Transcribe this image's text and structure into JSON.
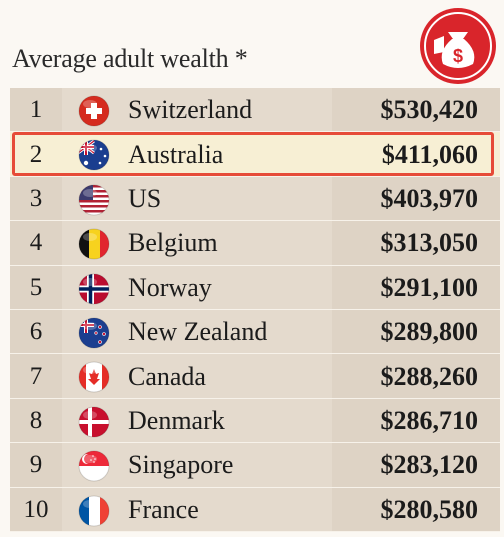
{
  "title": "Average adult wealth *",
  "rows": [
    {
      "rank": "1",
      "country": "Switzerland",
      "value": "$530,420",
      "flag": "switzerland-flag-icon"
    },
    {
      "rank": "2",
      "country": "Australia",
      "value": "$411,060",
      "flag": "australia-flag-icon",
      "highlighted": true
    },
    {
      "rank": "3",
      "country": "US",
      "value": "$403,970",
      "flag": "us-flag-icon"
    },
    {
      "rank": "4",
      "country": "Belgium",
      "value": "$313,050",
      "flag": "belgium-flag-icon"
    },
    {
      "rank": "5",
      "country": "Norway",
      "value": "$291,100",
      "flag": "norway-flag-icon"
    },
    {
      "rank": "6",
      "country": "New Zealand",
      "value": "$289,800",
      "flag": "new-zealand-flag-icon"
    },
    {
      "rank": "7",
      "country": "Canada",
      "value": "$288,260",
      "flag": "canada-flag-icon"
    },
    {
      "rank": "8",
      "country": "Denmark",
      "value": "$286,710",
      "flag": "denmark-flag-icon"
    },
    {
      "rank": "9",
      "country": "Singapore",
      "value": "$283,120",
      "flag": "singapore-flag-icon"
    },
    {
      "rank": "10",
      "country": "France",
      "value": "$280,580",
      "flag": "france-flag-icon"
    }
  ],
  "colors": {
    "highlight_border": "#e64b38",
    "badge": "#d9252b"
  },
  "badge_icon": "money-bag-icon"
}
